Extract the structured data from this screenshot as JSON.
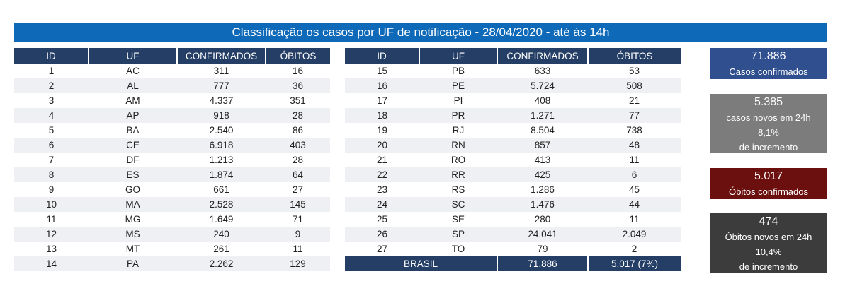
{
  "title": "Classificação os casos por UF de notificação - 28/04/2020 - até às 14h",
  "columns": [
    "ID",
    "UF",
    "CONFIRMADOS",
    "ÓBITOS"
  ],
  "left_rows": [
    [
      "1",
      "AC",
      "311",
      "16"
    ],
    [
      "2",
      "AL",
      "777",
      "36"
    ],
    [
      "3",
      "AM",
      "4.337",
      "351"
    ],
    [
      "4",
      "AP",
      "918",
      "28"
    ],
    [
      "5",
      "BA",
      "2.540",
      "86"
    ],
    [
      "6",
      "CE",
      "6.918",
      "403"
    ],
    [
      "7",
      "DF",
      "1.213",
      "28"
    ],
    [
      "8",
      "ES",
      "1.874",
      "64"
    ],
    [
      "9",
      "GO",
      "661",
      "27"
    ],
    [
      "10",
      "MA",
      "2.528",
      "145"
    ],
    [
      "11",
      "MG",
      "1.649",
      "71"
    ],
    [
      "12",
      "MS",
      "240",
      "9"
    ],
    [
      "13",
      "MT",
      "261",
      "11"
    ],
    [
      "14",
      "PA",
      "2.262",
      "129"
    ]
  ],
  "right_rows": [
    [
      "15",
      "PB",
      "633",
      "53"
    ],
    [
      "16",
      "PE",
      "5.724",
      "508"
    ],
    [
      "17",
      "PI",
      "408",
      "21"
    ],
    [
      "18",
      "PR",
      "1.271",
      "77"
    ],
    [
      "19",
      "RJ",
      "8.504",
      "738"
    ],
    [
      "20",
      "RN",
      "857",
      "48"
    ],
    [
      "21",
      "RO",
      "413",
      "11"
    ],
    [
      "22",
      "RR",
      "425",
      "6"
    ],
    [
      "23",
      "RS",
      "1.286",
      "45"
    ],
    [
      "24",
      "SC",
      "1.476",
      "44"
    ],
    [
      "25",
      "SE",
      "280",
      "11"
    ],
    [
      "26",
      "SP",
      "24.041",
      "2.049"
    ],
    [
      "27",
      "TO",
      "79",
      "2"
    ]
  ],
  "total": {
    "label": "BRASIL",
    "confirmados": "71.886",
    "obitos": "5.017 (7%)"
  },
  "cards": {
    "confirmed": {
      "value": "71.886",
      "label": "Casos confirmados"
    },
    "new_cases": {
      "value": "5.385",
      "label": "casos novos em 24h",
      "pct": "8,1%",
      "pct_label": "de incremento"
    },
    "deaths": {
      "value": "5.017",
      "label": "Óbitos confirmados"
    },
    "new_deaths": {
      "value": "474",
      "label": "Óbitos novos em 24h",
      "pct": "10,4%",
      "pct_label": "de incremento"
    }
  },
  "colors": {
    "title_bar": "#0e6ab8",
    "table_header": "#243e66",
    "row_alt": "#eef0f3",
    "card_confirmed": "#2f4f8f",
    "card_new_cases": "#7c7c7c",
    "card_deaths": "#6b0f0f",
    "card_new_deaths": "#3c3c3c"
  }
}
